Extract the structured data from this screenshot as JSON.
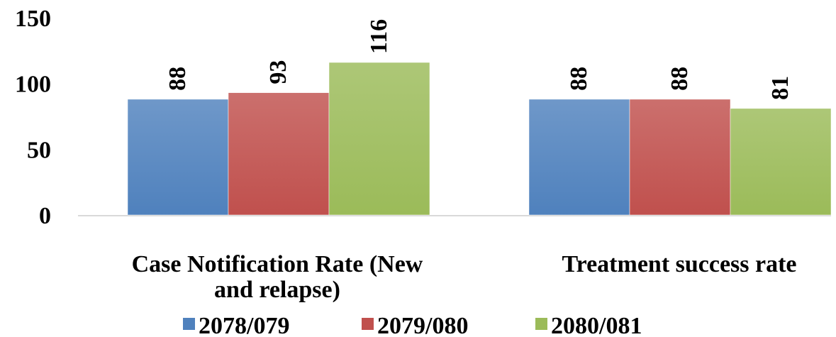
{
  "chart_data": {
    "type": "bar",
    "categories": [
      [
        "Case Notification Rate (New",
        "and relapse)"
      ],
      [
        "Treatment success rate"
      ]
    ],
    "series": [
      {
        "name": "2078/079",
        "values": [
          88,
          88
        ],
        "color": "#4f81bd"
      },
      {
        "name": "2079/080",
        "values": [
          93,
          88
        ],
        "color": "#c0504d"
      },
      {
        "name": "2080/081",
        "values": [
          116,
          81
        ],
        "color": "#9bbb59"
      }
    ],
    "ylim": [
      0,
      150
    ],
    "yticks": [
      "0",
      "50",
      "100",
      "150"
    ],
    "ytick_values": [
      0,
      50,
      100,
      150
    ],
    "grid": false,
    "legend": "bottom",
    "data_labels": "rotated-vertical"
  }
}
